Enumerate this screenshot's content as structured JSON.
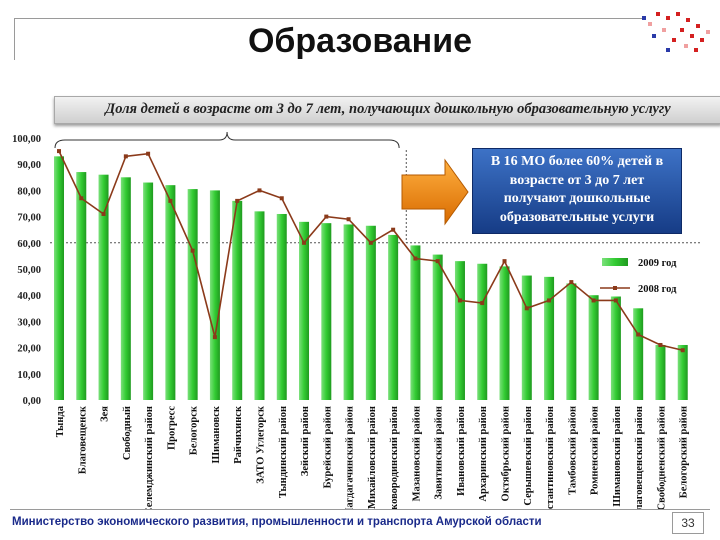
{
  "page": {
    "title": "Образование",
    "subtitle": "Доля детей в возрасте от 3 до 7 лет, получающих дошкольную образовательную услугу",
    "note": "В 16 МО более 60% детей в возрасте от 3 до 7 лет получают дошкольные образовательные услуги",
    "footer": "Министерство экономического развития, промышленности и транспорта Амурской области",
    "page_number": "33"
  },
  "colors": {
    "bar": "#33cc33",
    "line": "#8b3a1a",
    "note_bg": "#1f4ea3",
    "arrow": "#f08a10"
  },
  "chart_data": {
    "type": "bar",
    "categories": [
      "Тында",
      "Благовещенск",
      "Зея",
      "Свободный",
      "Селемджинский район",
      "Прогресс",
      "Белогорск",
      "Шимановск",
      "Райчихинск",
      "ЗАТО Углегорск",
      "Тындинский район",
      "Зейский район",
      "Бурейский район",
      "Магдагачинский район",
      "Михайловский район",
      "Сковородинский район",
      "Мазановский район",
      "Завитинский район",
      "Ивановский район",
      "Архаринский район",
      "Октябрьский район",
      "Серышевский район",
      "Константиновский район",
      "Тамбовский район",
      "Ромненский район",
      "Шимановский район",
      "Благовещенский район",
      "Свободненский район",
      "Белогорский район"
    ],
    "series": [
      {
        "name": "2009 год",
        "type": "bar",
        "values": [
          93,
          87,
          86,
          85,
          83,
          82,
          80.5,
          80,
          76,
          72,
          71,
          68,
          67.5,
          67,
          66.5,
          63,
          59,
          55.5,
          53,
          52,
          51,
          47.5,
          47,
          44.5,
          40,
          39.5,
          35,
          21,
          21
        ]
      },
      {
        "name": "2008 год",
        "type": "line",
        "values": [
          95,
          77,
          71,
          93,
          94,
          76,
          57,
          24,
          76,
          80,
          77,
          60,
          70,
          69,
          60,
          65,
          54,
          53,
          38,
          37,
          53,
          35,
          38,
          45,
          38,
          38,
          25,
          21,
          19
        ]
      }
    ],
    "ylim": [
      0,
      100
    ],
    "yticks": [
      "0,00",
      "10,00",
      "20,00",
      "30,00",
      "40,00",
      "50,00",
      "60,00",
      "70,00",
      "80,00",
      "90,00",
      "100,00"
    ],
    "reference_line": 60,
    "legend": [
      "2009 год",
      "2008 год"
    ],
    "legend_position": "right"
  }
}
